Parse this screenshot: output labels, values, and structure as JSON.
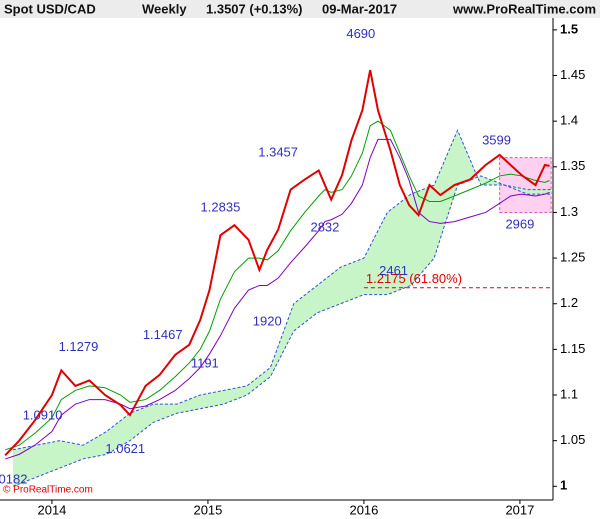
{
  "chart_data": {
    "type": "line",
    "title": "Spot USD/CAD",
    "period": "Weekly",
    "last_price": "1.3507 (+0.13%)",
    "date": "09-Mar-2017",
    "source": "www.ProRealTime.com",
    "watermark": "© ProRealTime.com",
    "xlim": [
      2013.667,
      2017.212
    ],
    "xticks": [
      2014,
      2015,
      2016,
      2017
    ],
    "ylim": [
      0.985,
      1.513
    ],
    "yticks": [
      1,
      1.05,
      1.1,
      1.15,
      1.2,
      1.25,
      1.3,
      1.35,
      1.4,
      1.45,
      1.5
    ],
    "x": [
      2013.7,
      2013.79,
      2013.89,
      2014.0,
      2014.06,
      2014.15,
      2014.24,
      2014.34,
      2014.44,
      2014.5,
      2014.6,
      2014.69,
      2014.79,
      2014.88,
      2014.95,
      2015.01,
      2015.08,
      2015.17,
      2015.26,
      2015.33,
      2015.38,
      2015.45,
      2015.53,
      2015.62,
      2015.71,
      2015.75,
      2015.79,
      2015.86,
      2015.92,
      2015.99,
      2016.04,
      2016.09,
      2016.17,
      2016.23,
      2016.29,
      2016.35,
      2016.42,
      2016.49,
      2016.58,
      2016.68,
      2016.78,
      2016.87,
      2016.94,
      2017.01,
      2017.1,
      2017.16,
      2017.19
    ],
    "series": [
      {
        "color": "#e00000",
        "values": [
          1.034,
          1.05,
          1.072,
          1.1,
          1.127,
          1.11,
          1.116,
          1.1,
          1.089,
          1.078,
          1.11,
          1.122,
          1.144,
          1.155,
          1.182,
          1.215,
          1.275,
          1.286,
          1.27,
          1.237,
          1.259,
          1.281,
          1.325,
          1.336,
          1.346,
          1.33,
          1.314,
          1.341,
          1.379,
          1.412,
          1.456,
          1.412,
          1.368,
          1.33,
          1.308,
          1.297,
          1.33,
          1.319,
          1.33,
          1.336,
          1.352,
          1.363,
          1.352,
          1.341,
          1.33,
          1.352,
          1.351
        ]
      },
      {
        "color": "#00a000",
        "values": [
          1.04,
          1.045,
          1.058,
          1.075,
          1.095,
          1.105,
          1.11,
          1.108,
          1.1,
          1.092,
          1.095,
          1.105,
          1.12,
          1.135,
          1.15,
          1.17,
          1.205,
          1.235,
          1.25,
          1.25,
          1.248,
          1.258,
          1.28,
          1.3,
          1.318,
          1.325,
          1.322,
          1.325,
          1.34,
          1.365,
          1.395,
          1.4,
          1.39,
          1.365,
          1.34,
          1.318,
          1.312,
          1.312,
          1.318,
          1.325,
          1.332,
          1.34,
          1.342,
          1.34,
          1.335,
          1.333,
          1.335
        ]
      },
      {
        "color": "#8000c0",
        "values": [
          1.03,
          1.035,
          1.045,
          1.06,
          1.078,
          1.09,
          1.095,
          1.095,
          1.09,
          1.085,
          1.088,
          1.095,
          1.105,
          1.118,
          1.13,
          1.145,
          1.165,
          1.195,
          1.215,
          1.22,
          1.22,
          1.228,
          1.245,
          1.262,
          1.28,
          1.29,
          1.292,
          1.298,
          1.31,
          1.33,
          1.36,
          1.38,
          1.38,
          1.36,
          1.335,
          1.3,
          1.29,
          1.288,
          1.29,
          1.295,
          1.3,
          1.31,
          1.318,
          1.32,
          1.318,
          1.32,
          1.322
        ]
      }
    ],
    "cloud": {
      "color": "#c8f5c8",
      "line_color": "#3050d0",
      "x": [
        2013.75,
        2013.9,
        2014.05,
        2014.2,
        2014.35,
        2014.5,
        2014.65,
        2014.8,
        2014.95,
        2015.1,
        2015.25,
        2015.4,
        2015.55,
        2015.7,
        2015.85,
        2016.0,
        2016.15,
        2016.3,
        2016.45,
        2016.6,
        2016.75,
        2016.9,
        2017.05,
        2017.2
      ],
      "span_a": [
        1.04,
        1.045,
        1.05,
        1.045,
        1.06,
        1.08,
        1.09,
        1.09,
        1.1,
        1.105,
        1.11,
        1.13,
        1.2,
        1.22,
        1.24,
        1.25,
        1.3,
        1.32,
        1.33,
        1.39,
        1.33,
        1.33,
        1.32,
        1.32
      ],
      "span_b": [
        1.0,
        1.01,
        1.02,
        1.03,
        1.035,
        1.05,
        1.07,
        1.08,
        1.085,
        1.09,
        1.1,
        1.12,
        1.17,
        1.19,
        1.2,
        1.21,
        1.21,
        1.22,
        1.25,
        1.33,
        1.34,
        1.33,
        1.325,
        1.325
      ]
    },
    "zone": {
      "x": [
        2016.87,
        2017.2
      ],
      "y": [
        1.3,
        1.36
      ],
      "color": "#ffd0f0"
    },
    "fib_level": {
      "value": 1.2175,
      "label": "1.2175 (61.80%)",
      "color": "#e00000",
      "x_start": 2016.0
    },
    "annotations": [
      {
        "text": "4690",
        "x": 2015.98,
        "y": 1.495,
        "color": "#3030c0"
      },
      {
        "text": "1.3457",
        "x": 2015.45,
        "y": 1.365,
        "color": "#3030c0"
      },
      {
        "text": "3599",
        "x": 2016.85,
        "y": 1.378,
        "color": "#3030c0"
      },
      {
        "text": "1.2835",
        "x": 2015.08,
        "y": 1.305,
        "color": "#3030c0"
      },
      {
        "text": "2832",
        "x": 2015.75,
        "y": 1.283,
        "color": "#3030c0"
      },
      {
        "text": "2969",
        "x": 2017.0,
        "y": 1.286,
        "color": "#3030c0"
      },
      {
        "text": "2461",
        "x": 2016.19,
        "y": 1.235,
        "color": "#3030c0"
      },
      {
        "text": "1920",
        "x": 2015.38,
        "y": 1.18,
        "color": "#3030c0"
      },
      {
        "text": "1.1279",
        "x": 2014.17,
        "y": 1.152,
        "color": "#3030c0"
      },
      {
        "text": "1.1467",
        "x": 2014.71,
        "y": 1.165,
        "color": "#3030c0"
      },
      {
        "text": "1191",
        "x": 2014.98,
        "y": 1.134,
        "color": "#3030c0"
      },
      {
        "text": "1.0910",
        "x": 2013.94,
        "y": 1.077,
        "color": "#3030c0"
      },
      {
        "text": "1.0621",
        "x": 2014.47,
        "y": 1.04,
        "color": "#3030c0"
      },
      {
        "text": "0182",
        "x": 2013.75,
        "y": 1.007,
        "color": "#3030c0"
      }
    ]
  }
}
